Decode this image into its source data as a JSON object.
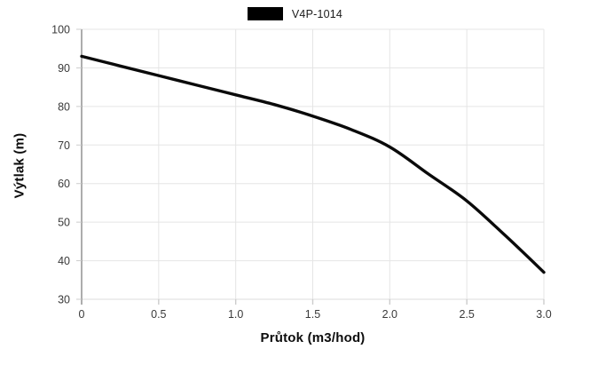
{
  "chart_data": {
    "type": "line",
    "title": "",
    "xlabel": "Průtok (m3/hod)",
    "ylabel": "Výtlak (m)",
    "xlim": [
      0,
      3.0
    ],
    "ylim": [
      30,
      100
    ],
    "grid": true,
    "legend_position": "top-center",
    "x_ticks": [
      0,
      0.5,
      1.0,
      1.5,
      2.0,
      2.5,
      3.0
    ],
    "x_tick_labels": [
      "0",
      "0.5",
      "1.0",
      "1.5",
      "2.0",
      "2.5",
      "3.0"
    ],
    "y_ticks": [
      30,
      40,
      50,
      60,
      70,
      80,
      90,
      100
    ],
    "y_tick_labels": [
      "30",
      "40",
      "50",
      "60",
      "70",
      "80",
      "90",
      "100"
    ],
    "series": [
      {
        "name": "V4P-1014",
        "color": "#0a0a0a",
        "x": [
          0,
          0.25,
          0.5,
          0.75,
          1.0,
          1.25,
          1.5,
          1.75,
          2.0,
          2.25,
          2.5,
          2.75,
          3.0
        ],
        "values": [
          93,
          90.5,
          88,
          85.5,
          83,
          80.5,
          77.5,
          74,
          69.5,
          62.5,
          55.5,
          46.5,
          37
        ]
      }
    ],
    "colors": {
      "line": "#0a0a0a",
      "grid": "#e5e5e5",
      "axis_border_left": "#8a8a8a",
      "axis_border_bottom": "#dcdcdc",
      "tick_mark": "#cccccc",
      "tick_mark_origin": "#8a8a8a",
      "tick_label": "#3a3a3a",
      "background": "#ffffff"
    }
  }
}
